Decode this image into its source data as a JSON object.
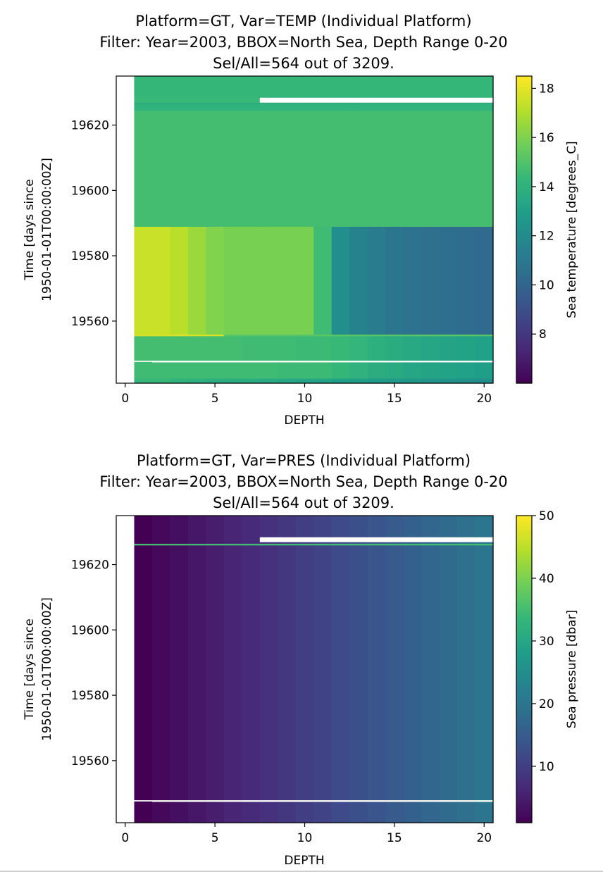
{
  "colors": {
    "viridis": [
      "#440154",
      "#482878",
      "#3e4989",
      "#31688e",
      "#26828e",
      "#1f9e89",
      "#35b779",
      "#6ece58",
      "#b5de2b",
      "#fde725"
    ],
    "gap": "#ffffff",
    "frame": "#000000"
  },
  "chart_data": [
    {
      "type": "heatmap",
      "title": [
        "Platform=GT, Var=TEMP (Individual Platform)",
        "Filter: Year=2003, BBOX=North Sea, Depth Range 0-20",
        "Sel/All=564 out of 3209."
      ],
      "xlabel": "DEPTH",
      "ylabel": [
        "Time [days since",
        "1950-01-01T00:00:00Z]"
      ],
      "colorbar_label": "Sea temperature [degrees_C]",
      "xlim": [
        -0.5,
        20.5
      ],
      "ylim": [
        19541,
        19635
      ],
      "clim": [
        6,
        18.5
      ],
      "xticks": [
        0,
        5,
        10,
        15,
        20
      ],
      "yticks": [
        19560,
        19580,
        19600,
        19620
      ],
      "cbar_ticks": [
        8,
        10,
        12,
        14,
        16,
        18
      ],
      "cmap": "viridis",
      "depth_start": 0.5,
      "grid": false,
      "bands": [
        {
          "t": [
            19541,
            19542.5
          ],
          "values": [
            14.3,
            14.3,
            14.0,
            13.9,
            13.8,
            13.7,
            13.6,
            13.5,
            13.4,
            13.3,
            13.2,
            13.0,
            12.9,
            12.8,
            12.7,
            12.6,
            12.5,
            12.4,
            12.3,
            12.2
          ]
        },
        {
          "t": [
            19542.5,
            19547.5
          ],
          "values": [
            14.6,
            14.6,
            14.6,
            14.6,
            14.6,
            14.6,
            14.6,
            14.6,
            14.5,
            14.5,
            14.5,
            14.3,
            14.0,
            13.8,
            13.6,
            13.4,
            13.3,
            13.2,
            13.1,
            13.0
          ]
        },
        {
          "t": [
            19547.5,
            19548
          ],
          "values": [
            null,
            "gap",
            "gap",
            "gap",
            "gap",
            "gap",
            "gap",
            "gap",
            "gap",
            "gap",
            "gap",
            "gap",
            "gap",
            "gap",
            "gap",
            "gap",
            "gap",
            "gap",
            "gap",
            "gap"
          ]
        },
        {
          "t": [
            19548,
            19555.5
          ],
          "values": [
            14.7,
            14.7,
            14.7,
            14.7,
            14.7,
            14.7,
            14.6,
            14.6,
            14.6,
            14.5,
            14.5,
            14.4,
            14.2,
            13.9,
            13.7,
            13.5,
            13.4,
            13.3,
            13.2,
            13.1
          ]
        },
        {
          "t": [
            19555.5,
            19556
          ],
          "values": [
            17.8,
            17.8,
            17.8,
            17.8,
            17.8,
            15.2,
            15.2,
            15.2,
            15.2,
            15.2,
            15.2,
            15.2,
            15.2,
            15.2,
            15.2,
            15.2,
            15.2,
            15.2,
            15.2,
            15.2
          ]
        },
        {
          "t": [
            19556,
            19589
          ],
          "values": [
            17.5,
            17.5,
            17.2,
            16.6,
            16.1,
            15.9,
            15.9,
            15.9,
            15.9,
            15.9,
            14.6,
            12.2,
            11.6,
            11.2,
            10.9,
            10.7,
            10.6,
            10.5,
            10.4,
            10.3
          ]
        },
        {
          "t": [
            19589,
            19624.5
          ],
          "values": [
            14.7,
            14.7,
            14.7,
            14.7,
            14.7,
            14.7,
            14.7,
            14.7,
            14.7,
            14.7,
            14.7,
            14.7,
            14.7,
            14.7,
            14.7,
            14.7,
            14.7,
            14.7,
            14.7,
            14.7
          ]
        },
        {
          "t": [
            19624.5,
            19626.5
          ],
          "values": [
            14.1,
            14.1,
            14.1,
            14.1,
            14.1,
            14.1,
            14.1,
            14.1,
            14.1,
            14.1,
            14.1,
            14.1,
            14.1,
            14.1,
            14.1,
            14.1,
            14.1,
            14.1,
            14.1,
            14.1
          ]
        },
        {
          "t": [
            19626.5,
            19627
          ],
          "values": [
            13.8,
            13.8,
            13.8,
            13.8,
            13.8,
            13.8,
            13.8,
            13.8,
            13.8,
            13.8,
            13.8,
            13.8,
            13.8,
            13.8,
            13.8,
            13.8,
            13.8,
            13.8,
            13.8,
            13.8
          ]
        },
        {
          "t": [
            19627,
            19628.5
          ],
          "values": [
            14.4,
            14.4,
            14.4,
            14.4,
            14.4,
            14.4,
            14.4,
            "gap",
            "gap",
            "gap",
            "gap",
            "gap",
            "gap",
            "gap",
            "gap",
            "gap",
            "gap",
            "gap",
            "gap",
            "gap"
          ]
        },
        {
          "t": [
            19628.5,
            19635
          ],
          "values": [
            14.3,
            14.3,
            14.3,
            14.3,
            14.3,
            14.3,
            14.3,
            14.3,
            14.3,
            14.3,
            14.3,
            14.3,
            14.3,
            14.3,
            14.3,
            14.3,
            14.3,
            14.3,
            14.3,
            14.3
          ]
        }
      ]
    },
    {
      "type": "heatmap",
      "title": [
        "Platform=GT, Var=PRES (Individual Platform)",
        "Filter: Year=2003, BBOX=North Sea, Depth Range 0-20",
        "Sel/All=564 out of 3209."
      ],
      "xlabel": "DEPTH",
      "ylabel": [
        "Time [days since",
        "1950-01-01T00:00:00Z]"
      ],
      "colorbar_label": "Sea pressure [dbar]",
      "xlim": [
        -0.5,
        20.5
      ],
      "ylim": [
        19541,
        19635
      ],
      "clim": [
        1,
        50
      ],
      "xticks": [
        0,
        5,
        10,
        15,
        20
      ],
      "yticks": [
        19560,
        19580,
        19600,
        19620
      ],
      "cbar_ticks": [
        10,
        20,
        30,
        40,
        50
      ],
      "cmap": "viridis",
      "depth_start": 0.5,
      "grid": false,
      "bands": [
        {
          "t": [
            19541,
            19547.5
          ],
          "values": [
            1,
            2,
            3,
            4,
            5,
            6,
            7,
            8,
            9,
            10,
            11,
            12,
            13,
            14,
            15,
            16,
            17,
            18,
            19,
            20
          ]
        },
        {
          "t": [
            19547.5,
            19548
          ],
          "values": [
            null,
            "gap",
            "gap",
            "gap",
            "gap",
            "gap",
            "gap",
            "gap",
            "gap",
            "gap",
            "gap",
            "gap",
            "gap",
            "gap",
            "gap",
            "gap",
            "gap",
            "gap",
            "gap",
            "gap"
          ]
        },
        {
          "t": [
            19548,
            19626
          ],
          "values": [
            1,
            2,
            3,
            4,
            5,
            6,
            7,
            8,
            9,
            10,
            11,
            12,
            13,
            14,
            15,
            16,
            17,
            18,
            19,
            20
          ]
        },
        {
          "t": [
            19626,
            19626.5
          ],
          "values": [
            35,
            35,
            35,
            35,
            35,
            35,
            35,
            35,
            35,
            35,
            35,
            35,
            35,
            35,
            35,
            35,
            35,
            35,
            35,
            35
          ]
        },
        {
          "t": [
            19626.5,
            19627
          ],
          "values": [
            1,
            2,
            3,
            4,
            5,
            6,
            7,
            8,
            9,
            10,
            11,
            12,
            13,
            14,
            15,
            16,
            17,
            18,
            19,
            20
          ]
        },
        {
          "t": [
            19627,
            19628.5
          ],
          "values": [
            1,
            2,
            3,
            4,
            5,
            6,
            7,
            "gap",
            "gap",
            "gap",
            "gap",
            "gap",
            "gap",
            "gap",
            "gap",
            "gap",
            "gap",
            "gap",
            "gap",
            "gap"
          ]
        },
        {
          "t": [
            19628.5,
            19635
          ],
          "values": [
            1,
            2,
            3,
            4,
            5,
            6,
            7,
            8,
            9,
            10,
            11,
            12,
            13,
            14,
            15,
            16,
            17,
            18,
            19,
            20
          ]
        }
      ]
    }
  ]
}
